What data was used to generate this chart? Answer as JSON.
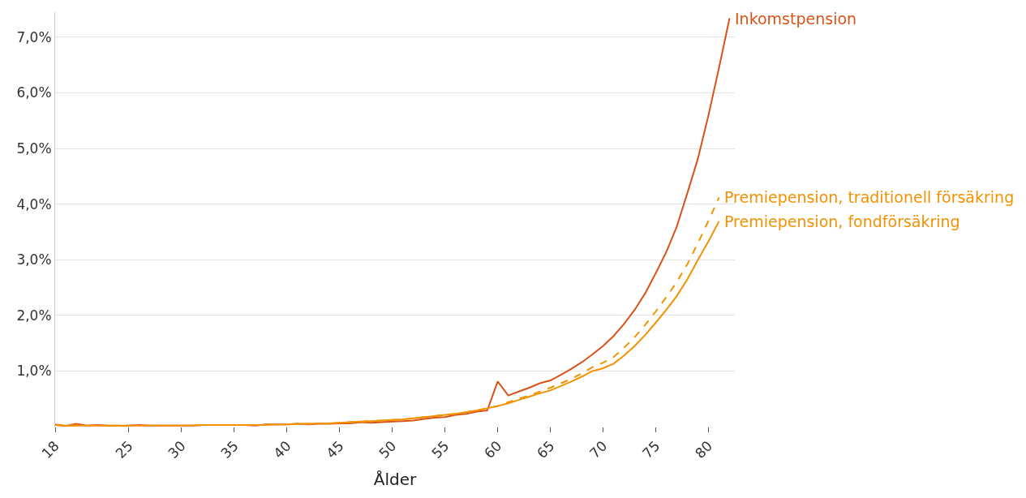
{
  "chart_data": {
    "type": "line",
    "xlabel": "Ålder",
    "xlim": [
      18,
      82.5
    ],
    "ylim": [
      0,
      7.45
    ],
    "xticks": [
      18,
      25,
      30,
      35,
      40,
      45,
      50,
      55,
      60,
      65,
      70,
      75,
      80
    ],
    "yticks": [
      {
        "value": 1,
        "label": "1,0%"
      },
      {
        "value": 2,
        "label": "2,0%"
      },
      {
        "value": 3,
        "label": "3,0%"
      },
      {
        "value": 4,
        "label": "4,0%"
      },
      {
        "value": 5,
        "label": "5,0%"
      },
      {
        "value": 6,
        "label": "6,0%"
      },
      {
        "value": 7,
        "label": "7,0%"
      }
    ],
    "grid": "y",
    "legend": false,
    "marker": "none",
    "series": [
      {
        "name": "Inkomstpension",
        "color": "#d95319",
        "line_style": "solid",
        "x": [
          18,
          19,
          20,
          21,
          22,
          23,
          24,
          25,
          26,
          27,
          28,
          29,
          30,
          31,
          32,
          33,
          34,
          35,
          36,
          37,
          38,
          39,
          40,
          41,
          42,
          43,
          44,
          45,
          46,
          47,
          48,
          49,
          50,
          51,
          52,
          53,
          54,
          55,
          56,
          57,
          58,
          59,
          60,
          61,
          62,
          63,
          64,
          65,
          66,
          67,
          68,
          69,
          70,
          71,
          72,
          73,
          74,
          75,
          76,
          77,
          78,
          79,
          80,
          81,
          82
        ],
        "values": [
          0.04,
          0.01,
          0.05,
          0.02,
          0.03,
          0.02,
          0.01,
          0.02,
          0.03,
          0.02,
          0.02,
          0.02,
          0.02,
          0.02,
          0.03,
          0.03,
          0.03,
          0.03,
          0.03,
          0.02,
          0.04,
          0.04,
          0.04,
          0.05,
          0.04,
          0.05,
          0.05,
          0.06,
          0.06,
          0.08,
          0.07,
          0.08,
          0.09,
          0.1,
          0.11,
          0.14,
          0.16,
          0.17,
          0.21,
          0.23,
          0.27,
          0.29,
          0.81,
          0.56,
          0.63,
          0.7,
          0.78,
          0.83,
          0.93,
          1.04,
          1.16,
          1.3,
          1.45,
          1.63,
          1.85,
          2.1,
          2.4,
          2.76,
          3.14,
          3.6,
          4.2,
          4.82,
          5.6,
          6.45,
          7.34
        ]
      },
      {
        "name": "Premiepension, traditionell försäkring",
        "color": "#f39200",
        "line_style": "dashed",
        "x": [
          18,
          19,
          20,
          21,
          22,
          23,
          24,
          25,
          26,
          27,
          28,
          29,
          30,
          31,
          32,
          33,
          34,
          35,
          36,
          37,
          38,
          39,
          40,
          41,
          42,
          43,
          44,
          45,
          46,
          47,
          48,
          49,
          50,
          51,
          52,
          53,
          54,
          55,
          56,
          57,
          58,
          59,
          60,
          61,
          62,
          63,
          64,
          65,
          66,
          67,
          68,
          69,
          70,
          71,
          72,
          73,
          74,
          75,
          76,
          77,
          78,
          79,
          80,
          81
        ],
        "values": [
          0.03,
          0.02,
          0.02,
          0.02,
          0.02,
          0.02,
          0.02,
          0.02,
          0.02,
          0.02,
          0.02,
          0.02,
          0.02,
          0.02,
          0.03,
          0.03,
          0.03,
          0.03,
          0.03,
          0.03,
          0.03,
          0.04,
          0.04,
          0.05,
          0.05,
          0.06,
          0.06,
          0.07,
          0.08,
          0.09,
          0.1,
          0.11,
          0.12,
          0.13,
          0.15,
          0.17,
          0.19,
          0.21,
          0.23,
          0.26,
          0.29,
          0.33,
          0.37,
          0.44,
          0.5,
          0.56,
          0.63,
          0.7,
          0.78,
          0.86,
          0.96,
          1.07,
          1.15,
          1.25,
          1.42,
          1.61,
          1.83,
          2.07,
          2.33,
          2.6,
          2.92,
          3.3,
          3.7,
          4.12
        ]
      },
      {
        "name": "Premiepension, fondförsäkring",
        "color": "#f39200",
        "line_style": "solid",
        "x": [
          18,
          19,
          20,
          21,
          22,
          23,
          24,
          25,
          26,
          27,
          28,
          29,
          30,
          31,
          32,
          33,
          34,
          35,
          36,
          37,
          38,
          39,
          40,
          41,
          42,
          43,
          44,
          45,
          46,
          47,
          48,
          49,
          50,
          51,
          52,
          53,
          54,
          55,
          56,
          57,
          58,
          59,
          60,
          61,
          62,
          63,
          64,
          65,
          66,
          67,
          68,
          69,
          70,
          71,
          72,
          73,
          74,
          75,
          76,
          77,
          78,
          79,
          80,
          81
        ],
        "values": [
          0.03,
          0.02,
          0.02,
          0.02,
          0.02,
          0.02,
          0.02,
          0.02,
          0.02,
          0.02,
          0.02,
          0.02,
          0.02,
          0.02,
          0.03,
          0.03,
          0.03,
          0.03,
          0.03,
          0.03,
          0.03,
          0.04,
          0.04,
          0.05,
          0.05,
          0.06,
          0.06,
          0.07,
          0.08,
          0.09,
          0.1,
          0.11,
          0.12,
          0.13,
          0.15,
          0.17,
          0.19,
          0.21,
          0.23,
          0.26,
          0.29,
          0.33,
          0.37,
          0.42,
          0.48,
          0.54,
          0.6,
          0.65,
          0.73,
          0.81,
          0.9,
          1.0,
          1.05,
          1.13,
          1.28,
          1.45,
          1.65,
          1.87,
          2.1,
          2.35,
          2.65,
          3.0,
          3.33,
          3.69
        ]
      }
    ]
  }
}
